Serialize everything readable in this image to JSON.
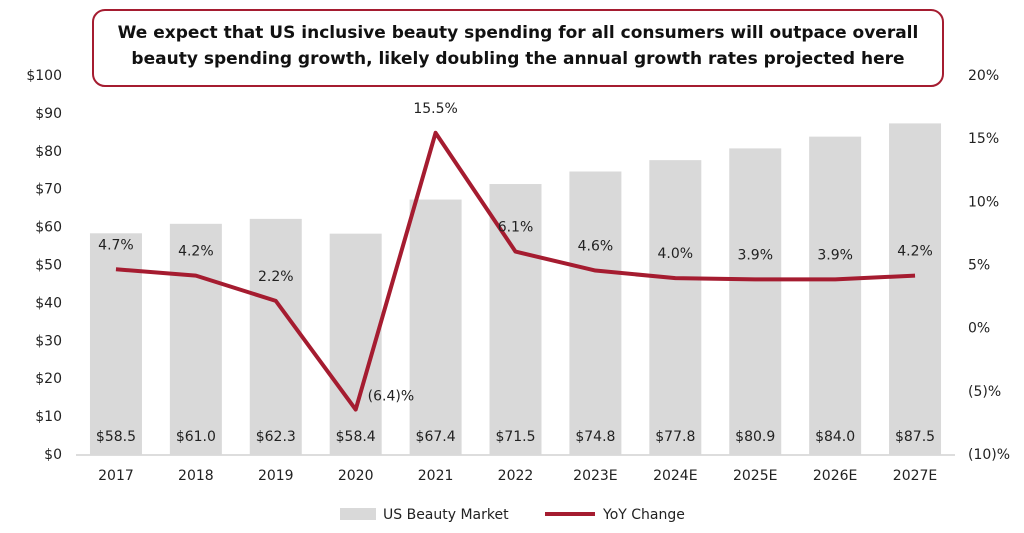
{
  "chart_data": {
    "type": "bar_line",
    "title": [
      "We expect that US inclusive beauty spending for all consumers will outpace overall",
      "beauty spending growth, likely doubling the annual growth rates projected here"
    ],
    "categories": [
      "2017",
      "2018",
      "2019",
      "2020",
      "2021",
      "2022",
      "2023E",
      "2024E",
      "2025E",
      "2026E",
      "2027E"
    ],
    "series": [
      {
        "name": "US Beauty Market",
        "type": "bar",
        "color": "#d9d9d9",
        "values": [
          58.5,
          61.0,
          62.3,
          58.4,
          67.4,
          71.5,
          74.8,
          77.8,
          80.9,
          84.0,
          87.5
        ],
        "value_labels": [
          "$58.5",
          "$61.0",
          "$62.3",
          "$58.4",
          "$67.4",
          "$71.5",
          "$74.8",
          "$77.8",
          "$80.9",
          "$84.0",
          "$87.5"
        ]
      },
      {
        "name": "YoY Change",
        "type": "line",
        "axis": "y2",
        "color": "#a51c30",
        "values": [
          4.7,
          4.2,
          2.2,
          -6.4,
          15.5,
          6.1,
          4.6,
          4.0,
          3.9,
          3.9,
          4.2
        ],
        "value_labels": [
          "4.7%",
          "4.2%",
          "2.2%",
          "(6.4)%",
          "15.5%",
          "6.1%",
          "4.6%",
          "4.0%",
          "3.9%",
          "3.9%",
          "4.2%"
        ]
      }
    ],
    "ylim": [
      0,
      100
    ],
    "yticks": [
      {
        "value": 0,
        "label": "$0"
      },
      {
        "value": 10,
        "label": "$10"
      },
      {
        "value": 20,
        "label": "$20"
      },
      {
        "value": 30,
        "label": "$30"
      },
      {
        "value": 40,
        "label": "$40"
      },
      {
        "value": 50,
        "label": "$50"
      },
      {
        "value": 60,
        "label": "$60"
      },
      {
        "value": 70,
        "label": "$70"
      },
      {
        "value": 80,
        "label": "$80"
      },
      {
        "value": 90,
        "label": "$90"
      },
      {
        "value": 100,
        "label": "$100"
      }
    ],
    "y2lim": [
      -10,
      20
    ],
    "y2ticks": [
      {
        "value": -10,
        "label": "(10)%"
      },
      {
        "value": -5,
        "label": "(5)%"
      },
      {
        "value": 0,
        "label": "0%"
      },
      {
        "value": 5,
        "label": "5%"
      },
      {
        "value": 10,
        "label": "10%"
      },
      {
        "value": 15,
        "label": "15%"
      },
      {
        "value": 20,
        "label": "20%"
      }
    ],
    "legend": "bottom"
  }
}
